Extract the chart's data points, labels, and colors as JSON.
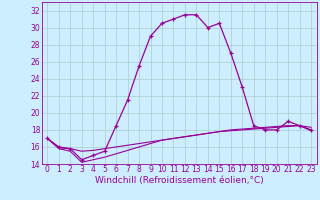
{
  "x": [
    0,
    1,
    2,
    3,
    4,
    5,
    6,
    7,
    8,
    9,
    10,
    11,
    12,
    13,
    14,
    15,
    16,
    17,
    18,
    19,
    20,
    21,
    22,
    23
  ],
  "line1": [
    17,
    16,
    15.8,
    14.5,
    15,
    15.5,
    18.5,
    21.5,
    25.5,
    29,
    30.5,
    31,
    31.5,
    31.5,
    30,
    30.5,
    27,
    23,
    18.5,
    18,
    18,
    19,
    18.5,
    18
  ],
  "line3": [
    17,
    15.9,
    15.8,
    15.5,
    15.6,
    15.8,
    16.0,
    16.2,
    16.4,
    16.6,
    16.8,
    17.0,
    17.2,
    17.4,
    17.6,
    17.8,
    17.9,
    18.0,
    18.1,
    18.2,
    18.3,
    18.4,
    18.5,
    18.3
  ],
  "line4": [
    17,
    15.8,
    15.5,
    14.2,
    14.5,
    14.8,
    15.2,
    15.6,
    16.0,
    16.4,
    16.8,
    17.0,
    17.2,
    17.4,
    17.6,
    17.8,
    18.0,
    18.1,
    18.2,
    18.3,
    18.4,
    18.5,
    18.5,
    17.9
  ],
  "line_color": "#990099",
  "bg_color": "#cceeff",
  "grid_color": "#aacccc",
  "xlabel": "Windchill (Refroidissement éolien,°C)",
  "ylim": [
    14,
    33
  ],
  "xlim": [
    -0.5,
    23.5
  ],
  "yticks": [
    14,
    16,
    18,
    20,
    22,
    24,
    26,
    28,
    30,
    32
  ],
  "xticks": [
    0,
    1,
    2,
    3,
    4,
    5,
    6,
    7,
    8,
    9,
    10,
    11,
    12,
    13,
    14,
    15,
    16,
    17,
    18,
    19,
    20,
    21,
    22,
    23
  ],
  "tick_fontsize": 5.5,
  "xlabel_fontsize": 6.5
}
